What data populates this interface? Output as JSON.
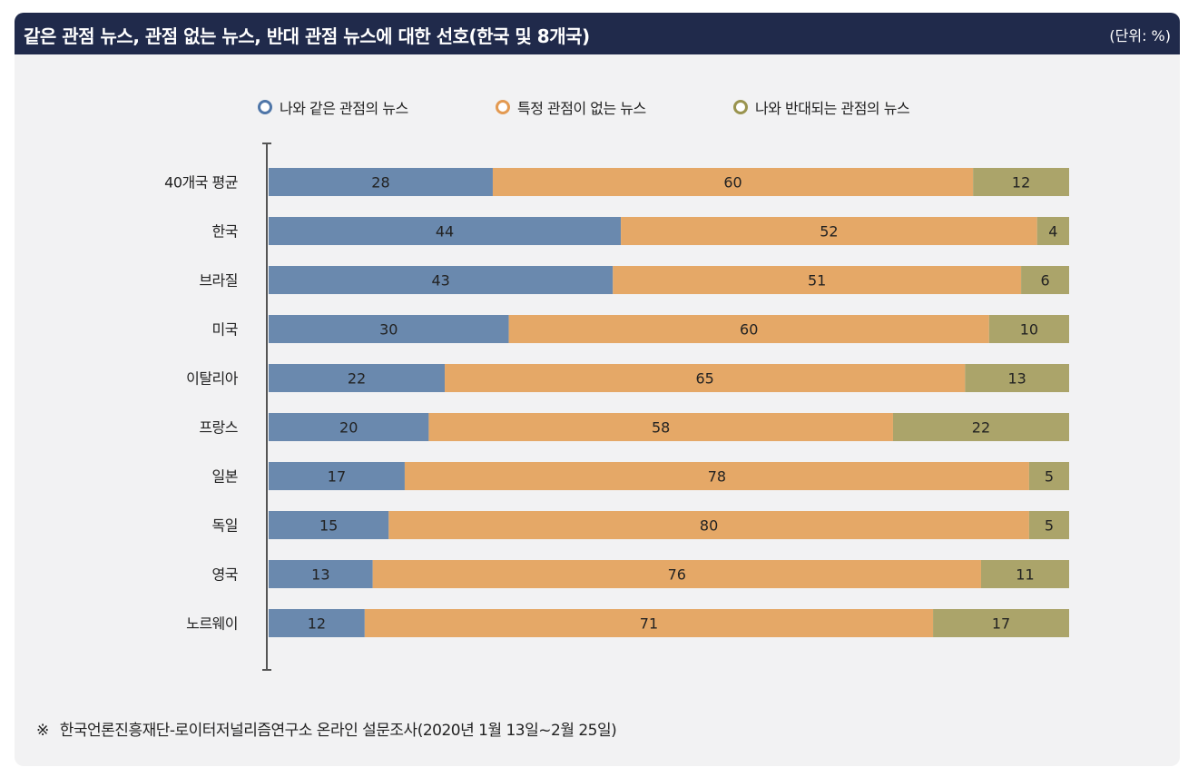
{
  "header": {
    "title": "같은 관점 뉴스, 관점 없는 뉴스, 반대 관점 뉴스에 대한 선호(한국 및 8개국)",
    "unit": "(단위: %)"
  },
  "footnote": {
    "mark": "※",
    "text": "한국언론진흥재단-로이터저널리즘연구소 온라인 설문조사(2020년 1월 13일~2월 25일)"
  },
  "chart_data": {
    "type": "bar",
    "orientation": "horizontal",
    "stacked": true,
    "title": "같은 관점 뉴스, 관점 없는 뉴스, 반대 관점 뉴스에 대한 선호(한국 및 8개국)",
    "unit": "%",
    "legend_position": "top-center",
    "categories": [
      "40개국 평균",
      "한국",
      "브라질",
      "미국",
      "이탈리아",
      "프랑스",
      "일본",
      "독일",
      "영국",
      "노르웨이"
    ],
    "series": [
      {
        "name": "나와 같은 관점의 뉴스",
        "color": "#6a89ae",
        "values": [
          28,
          44,
          43,
          30,
          22,
          20,
          17,
          15,
          13,
          12
        ]
      },
      {
        "name": "특정 관점이 없는 뉴스",
        "color": "#e5a867",
        "values": [
          60,
          52,
          51,
          60,
          65,
          58,
          78,
          80,
          76,
          71
        ]
      },
      {
        "name": "나와 반대되는 관점의 뉴스",
        "color": "#aba46a",
        "values": [
          12,
          4,
          6,
          10,
          13,
          22,
          5,
          5,
          11,
          17
        ]
      }
    ],
    "xlim": [
      0,
      100
    ]
  }
}
